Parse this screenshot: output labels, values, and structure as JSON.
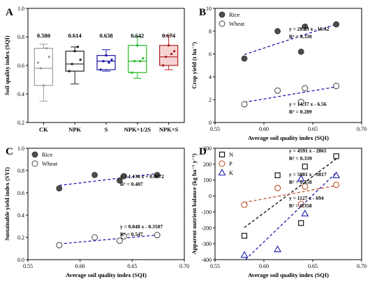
{
  "chart_data": [
    {
      "panel": "A",
      "type": "box",
      "ylabel": "Soil quality index (SQI)",
      "ylim": [
        0.2,
        1.0
      ],
      "yticks": [
        "0.2",
        "0.4",
        "0.6",
        "0.8",
        "1.0"
      ],
      "categories": [
        "CK",
        "NPK",
        "S",
        "NPK+1/2S",
        "NPK+S"
      ],
      "means_label": [
        "0.580",
        "0.614",
        "0.638",
        "0.642",
        "0.674"
      ],
      "colors": [
        "#9e9e9e",
        "#222222",
        "#1a1aa8",
        "#22bb22",
        "#b02020"
      ],
      "fill_colors": [
        "none",
        "none",
        "none",
        "none",
        "#f6d4d4"
      ],
      "boxes": [
        {
          "min": 0.35,
          "q1": 0.46,
          "median": 0.58,
          "q3": 0.72,
          "max": 0.75,
          "mean": 0.58,
          "points": [
            0.62,
            0.58,
            0.46,
            0.72,
            0.66
          ]
        },
        {
          "min": 0.47,
          "q1": 0.56,
          "median": 0.61,
          "q3": 0.7,
          "max": 0.73,
          "mean": 0.614,
          "points": [
            0.56,
            0.61,
            0.7,
            0.73,
            0.64
          ]
        },
        {
          "min": 0.56,
          "q1": 0.57,
          "median": 0.63,
          "q3": 0.67,
          "max": 0.71,
          "mean": 0.638,
          "points": [
            0.57,
            0.63,
            0.67,
            0.62,
            0.64
          ]
        },
        {
          "min": 0.51,
          "q1": 0.55,
          "median": 0.63,
          "q3": 0.74,
          "max": 0.8,
          "mean": 0.642,
          "points": [
            0.55,
            0.63,
            0.74,
            0.63,
            0.65
          ]
        },
        {
          "min": 0.57,
          "q1": 0.6,
          "median": 0.66,
          "q3": 0.74,
          "max": 0.81,
          "mean": 0.674,
          "points": [
            0.6,
            0.66,
            0.74,
            0.68,
            0.7
          ]
        }
      ]
    },
    {
      "panel": "B",
      "type": "scatter",
      "xlabel": "Average soil quality index (SQI)",
      "ylabel": "Crop yield (t ha⁻¹)",
      "xlim": [
        0.55,
        0.7
      ],
      "ylim": [
        0,
        10
      ],
      "xticks": [
        "0.55",
        "0.60",
        "0.65",
        "0.70"
      ],
      "yticks": [
        "0",
        "2",
        "4",
        "6",
        "8",
        "10"
      ],
      "legend": "top-left",
      "series": [
        {
          "name": "Rice",
          "marker": "filled",
          "x": [
            0.58,
            0.614,
            0.638,
            0.642,
            0.674
          ],
          "y": [
            5.6,
            8.0,
            6.2,
            8.4,
            8.6
          ],
          "fit": [
            28.23,
            -10.42
          ],
          "eq": "y = 28.23 x - 10.42",
          "r2": "R² = 0.330"
        },
        {
          "name": "Wheat",
          "marker": "open",
          "x": [
            0.58,
            0.614,
            0.638,
            0.642,
            0.674
          ],
          "y": [
            1.6,
            2.8,
            1.8,
            3.0,
            3.2
          ],
          "fit": [
            14.37,
            -6.56
          ],
          "eq": "y = 14.37 x - 6.56",
          "r2": "R² = 0.289"
        }
      ]
    },
    {
      "panel": "C",
      "type": "scatter",
      "xlabel": "Average soil quality index (SQI)",
      "ylabel": "Sustainable yield index (SYI)",
      "xlim": [
        0.55,
        0.7
      ],
      "ylim": [
        0,
        1.0
      ],
      "xticks": [
        "0.55",
        "0.60",
        "0.65",
        "0.70"
      ],
      "yticks": [
        "0.0",
        "0.2",
        "0.4",
        "0.6",
        "0.8",
        "1.0"
      ],
      "legend": "top-left",
      "series": [
        {
          "name": "Rice",
          "marker": "filled",
          "x": [
            0.58,
            0.614,
            0.638,
            0.642,
            0.674
          ],
          "y": [
            0.64,
            0.76,
            0.71,
            0.75,
            0.76
          ],
          "fit": [
            1.136,
            0.0072
          ],
          "eq": "y = 1.136 x + 0.0072",
          "r2": "R² = 0.407"
        },
        {
          "name": "Wheat",
          "marker": "open",
          "x": [
            0.58,
            0.614,
            0.638,
            0.642,
            0.674
          ],
          "y": [
            0.13,
            0.2,
            0.17,
            0.21,
            0.22
          ],
          "fit": [
            0.848,
            -0.3507
          ],
          "eq": "y = 0.848 x - 0.3507",
          "r2": "R² = 0.547"
        }
      ]
    },
    {
      "panel": "D",
      "type": "scatter",
      "xlabel": "Average soil quality index (SQI)",
      "ylabel": "Apparent nutrient balance (kg ha⁻¹ y⁻¹)",
      "xlim": [
        0.55,
        0.7
      ],
      "ylim": [
        -400,
        300
      ],
      "xticks": [
        "0.55",
        "0.60",
        "0.65",
        "0.70"
      ],
      "yticks": [
        "-400",
        "-300",
        "-200",
        "-100",
        "0",
        "100",
        "200",
        "300"
      ],
      "legend": "top-left",
      "series": [
        {
          "name": "N",
          "marker": "square",
          "color": "#000000",
          "x": [
            0.58,
            0.614,
            0.638,
            0.642,
            0.674
          ],
          "y": [
            -250,
            130,
            -170,
            185,
            250
          ],
          "fit": [
            4591,
            -2861
          ],
          "eq": "y = 4591 x - 2861",
          "r2": "R² = 0.339"
        },
        {
          "name": "P",
          "marker": "circle",
          "color": "#c0502a",
          "x": [
            0.58,
            0.614,
            0.638,
            0.642,
            0.674
          ],
          "y": [
            -55,
            50,
            -50,
            60,
            70
          ],
          "fit": [
            1127,
            -694
          ],
          "eq": "y = 1127 x - 694",
          "r2": "R² = 0.358"
        },
        {
          "name": "K",
          "marker": "triangle",
          "color": "#1a1ab0",
          "x": [
            0.58,
            0.614,
            0.638,
            0.642,
            0.674
          ],
          "y": [
            -370,
            -335,
            110,
            -110,
            130
          ],
          "fit": [
            5881,
            -3817
          ],
          "eq": "y = 5881 x - 3817",
          "r2": "R² = 0.358"
        }
      ]
    }
  ]
}
